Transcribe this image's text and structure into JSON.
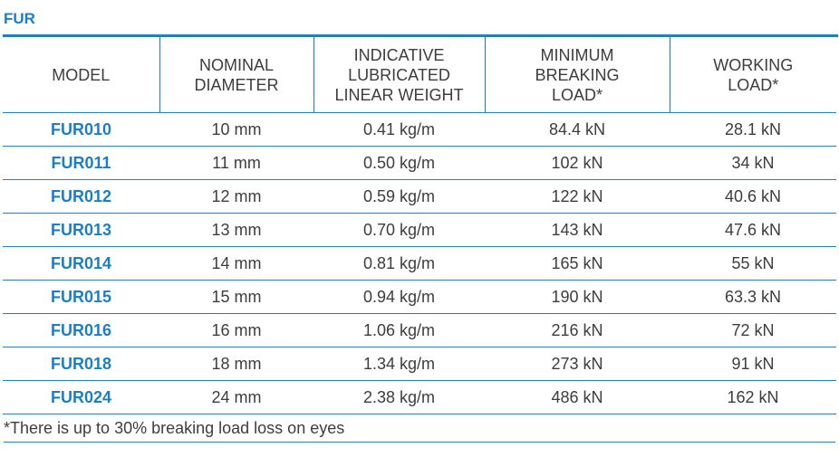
{
  "title": "FUR",
  "columns": [
    {
      "label": "MODEL"
    },
    {
      "label": "NOMINAL\nDIAMETER"
    },
    {
      "label": "INDICATIVE\nLUBRICATED\nLINEAR WEIGHT"
    },
    {
      "label": "MINIMUM\nBREAKING\nLOAD*"
    },
    {
      "label": "WORKING\nLOAD*"
    }
  ],
  "rows": [
    {
      "model": "FUR010",
      "diameter": "10 mm",
      "weight": "0.41 kg/m",
      "breaking": "84.4 kN",
      "working": "28.1 kN"
    },
    {
      "model": "FUR011",
      "diameter": "11 mm",
      "weight": "0.50 kg/m",
      "breaking": "102 kN",
      "working": "34 kN"
    },
    {
      "model": "FUR012",
      "diameter": "12 mm",
      "weight": "0.59 kg/m",
      "breaking": "122 kN",
      "working": "40.6 kN"
    },
    {
      "model": "FUR013",
      "diameter": "13 mm",
      "weight": "0.70 kg/m",
      "breaking": "143 kN",
      "working": "47.6 kN"
    },
    {
      "model": "FUR014",
      "diameter": "14 mm",
      "weight": "0.81 kg/m",
      "breaking": "165 kN",
      "working": "55 kN"
    },
    {
      "model": "FUR015",
      "diameter": "15 mm",
      "weight": "0.94 kg/m",
      "breaking": "190 kN",
      "working": "63.3 kN"
    },
    {
      "model": "FUR016",
      "diameter": "16 mm",
      "weight": "1.06 kg/m",
      "breaking": "216 kN",
      "working": "72 kN"
    },
    {
      "model": "FUR018",
      "diameter": "18 mm",
      "weight": "1.34 kg/m",
      "breaking": "273 kN",
      "working": "91 kN"
    },
    {
      "model": "FUR024",
      "diameter": "24 mm",
      "weight": "2.38 kg/m",
      "breaking": "486 kN",
      "working": "162 kN"
    }
  ],
  "footnote": "*There is up to 30% breaking load loss on eyes",
  "colors": {
    "accent": "#1a7fc4",
    "text": "#3d3d3d"
  }
}
